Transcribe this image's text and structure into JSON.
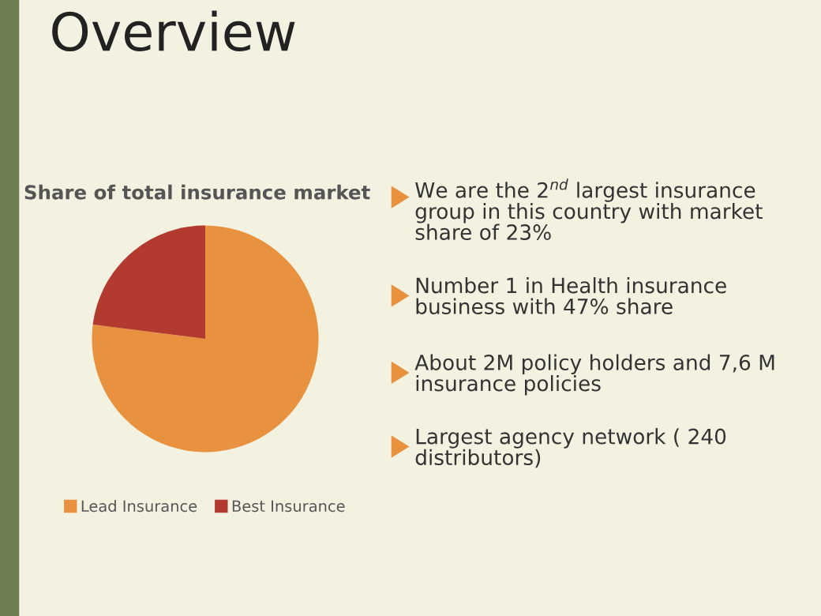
{
  "chart_data": {
    "type": "pie",
    "title": "Share of total insurance market",
    "categories": [
      "Lead Insurance",
      "Best Insurance"
    ],
    "values": [
      77,
      23
    ],
    "colors": [
      "#e8913e",
      "#b23a2f"
    ],
    "legend": "bottom",
    "annotations": [
      "Overview",
      "We are the 2$^{nd}$ largest insurance group in this country with market share of 23%",
      "Number 1 in Health insurance business with 47% share",
      "About 2M policy holders and 7,6 M insurance policies",
      "Largest agency network ( 240 distributors)"
    ]
  }
}
